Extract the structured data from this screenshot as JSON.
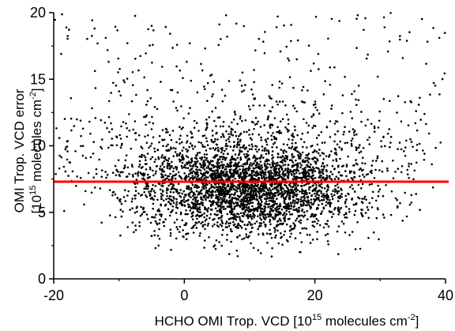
{
  "chart_data": {
    "type": "scatter",
    "title": "",
    "xlabel": {
      "prefix": "HCHO OMI Trop. VCD [10",
      "sup": "15",
      "middle": " molecules cm",
      "sup2": "-2",
      "suffix": "]"
    },
    "ylabel_line1": "OMI Trop. VCD error",
    "ylabel_line2": {
      "prefix": "[10",
      "sup": "15",
      "middle": " molecules cm",
      "sup2": "-2",
      "suffix": "]"
    },
    "xlim": [
      -20,
      40
    ],
    "ylim": [
      0,
      20
    ],
    "xticks": [
      -20,
      0,
      20,
      40
    ],
    "yticks": [
      0,
      5,
      10,
      15,
      20
    ],
    "grid": false,
    "legend": "none",
    "point_color": "#000000",
    "reference_line": {
      "y": 7.3,
      "color": "#ff0000"
    },
    "distribution": {
      "n_points": 3800,
      "description": "dense cloud of point estimates centered near x=10, y=6.5; spread roughly x -20 to 40, y 1.5 to 20"
    },
    "series": [
      {
        "values_summary": {
          "x_center": 10,
          "y_center": 6.5,
          "x_range": [
            -20,
            40
          ],
          "y_range": [
            1.5,
            20
          ]
        }
      }
    ]
  }
}
